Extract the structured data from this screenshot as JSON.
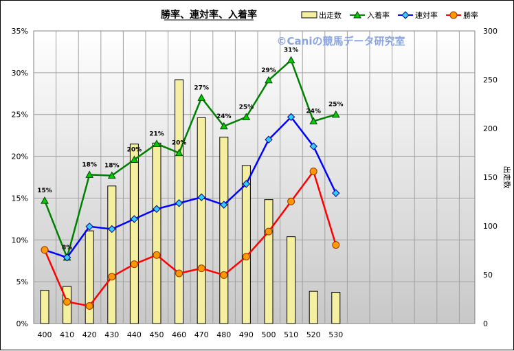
{
  "chart_data": {
    "type": "bar+line",
    "title": "勝率、連対率、入着率",
    "watermark": "©Caniの競馬データ研究室",
    "categories": [
      "400",
      "410",
      "420",
      "430",
      "440",
      "450",
      "460",
      "470",
      "480",
      "490",
      "500",
      "510",
      "520",
      "530"
    ],
    "y_left": {
      "min": 0,
      "max": 35,
      "step": 5,
      "unit": "%"
    },
    "y_right": {
      "min": 0,
      "max": 300,
      "step": 50,
      "label": "出走数"
    },
    "grid": true,
    "legend_position": "top-right",
    "series": [
      {
        "name": "出走数",
        "kind": "bar",
        "axis": "right",
        "color": "#f5f0a0",
        "values": [
          34,
          38,
          95,
          141,
          184,
          185,
          250,
          211,
          191,
          162,
          127,
          89,
          33,
          32
        ]
      },
      {
        "name": "入着率",
        "kind": "line",
        "axis": "left",
        "color": "#008000",
        "marker": "triangle",
        "values": [
          14.7,
          7.9,
          17.8,
          17.7,
          19.6,
          21.5,
          20.4,
          27.0,
          23.6,
          24.7,
          29.1,
          31.5,
          24.2,
          25.0
        ],
        "labels": [
          "15%",
          "8%",
          "18%",
          "18%",
          "20%",
          "21%",
          "20%",
          "27%",
          "24%",
          "25%",
          "29%",
          "31%",
          "24%",
          "25%"
        ]
      },
      {
        "name": "連対率",
        "kind": "line",
        "axis": "left",
        "color": "#0000ff",
        "marker": "diamond",
        "values": [
          8.8,
          7.9,
          11.6,
          11.3,
          12.5,
          13.7,
          14.4,
          15.1,
          14.2,
          16.7,
          22.0,
          24.7,
          21.2,
          15.6
        ]
      },
      {
        "name": "勝率",
        "kind": "line",
        "axis": "left",
        "color": "#ff0000",
        "marker": "circle",
        "values": [
          8.8,
          2.6,
          2.1,
          5.6,
          7.1,
          8.2,
          6.0,
          6.6,
          5.8,
          8.0,
          11.0,
          14.6,
          18.2,
          9.4
        ]
      }
    ]
  }
}
